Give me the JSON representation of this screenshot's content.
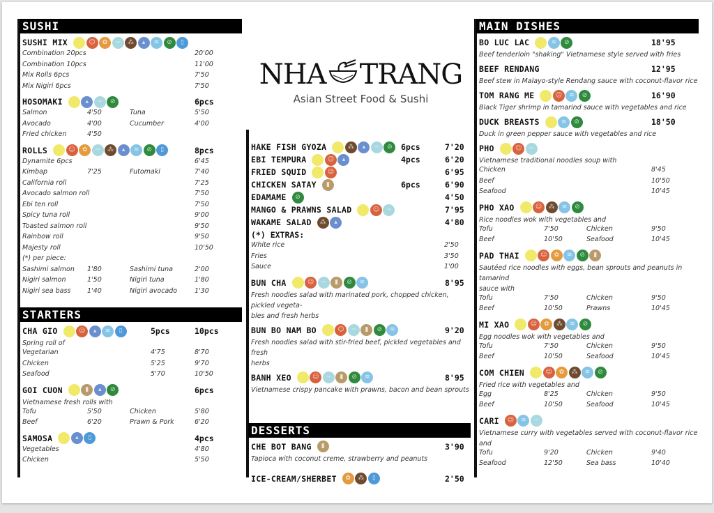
{
  "logo": {
    "title_left": "NHA",
    "title_right": "TRANG",
    "subtitle": "Asian Street Food & Sushi"
  },
  "allergen_colors": {
    "yellow": "#f1e96a",
    "red": "#d8623e",
    "orange": "#e49a3e",
    "teal": "#a9d8e0",
    "brown": "#6e4a2f",
    "blue": "#6a8fcf",
    "sky": "#86c4e6",
    "green": "#2f8a3e",
    "bottle": "#4e9ad8",
    "tan": "#b99a6a"
  },
  "left": {
    "sushi": {
      "title": "SUSHI",
      "sushi_mix": {
        "name": "SUSHI MIX",
        "icons": [
          "yellow",
          "red",
          "orange",
          "teal",
          "brown",
          "blue",
          "sky",
          "green",
          "bottle"
        ],
        "rows": [
          [
            "Combination 20pcs",
            "20'00"
          ],
          [
            "Combination 10pcs",
            "11'00"
          ],
          [
            "Mix Rolls 6pcs",
            "7'50"
          ],
          [
            "Mix Nigiri 6pcs",
            "7'50"
          ]
        ]
      },
      "hosomaki": {
        "name": "HOSOMAKI",
        "pcs": "6pcs",
        "icons": [
          "yellow",
          "blue",
          "teal",
          "green"
        ],
        "rows": [
          [
            "Salmon",
            "4'50",
            "Tuna",
            "5'50"
          ],
          [
            "Avocado",
            "4'00",
            "Cucumber",
            "4'00"
          ],
          [
            "Fried chicken",
            "4'50",
            "",
            ""
          ]
        ]
      },
      "rolls": {
        "name": "ROLLS",
        "pcs": "8pcs",
        "icons": [
          "yellow",
          "red",
          "orange",
          "teal",
          "brown",
          "blue",
          "sky",
          "green",
          "bottle"
        ],
        "rows": [
          [
            "Dynamite 6pcs",
            "",
            "",
            "6'45"
          ],
          [
            "Kimbap",
            "7'25",
            "Futomaki",
            "7'40"
          ],
          [
            "California roll",
            "",
            "",
            "7'25"
          ],
          [
            "Avocado salmon roll",
            "",
            "",
            "7'50"
          ],
          [
            "Ebi ten roll",
            "",
            "",
            "7'50"
          ],
          [
            "Spicy tuna roll",
            "",
            "",
            "9'00"
          ],
          [
            "Toasted salmon roll",
            "",
            "",
            "9'50"
          ],
          [
            "Rainbow roll",
            "",
            "",
            "9'50"
          ],
          [
            "Majesty roll",
            "",
            "",
            "10'50"
          ],
          [
            "(*) per piece:",
            "",
            "",
            ""
          ],
          [
            "Sashimi salmon",
            "1'80",
            "Sashimi tuna",
            "2'00"
          ],
          [
            "Nigiri salmon",
            "1'50",
            "Nigiri tuna",
            "1'80"
          ],
          [
            "Nigiri sea bass",
            "1'40",
            "Nigiri avocado",
            "1'30"
          ]
        ]
      }
    },
    "starters": {
      "title": "STARTERS",
      "cha_gio": {
        "name": "CHA GIO",
        "pcs5": "5pcs",
        "pcs10": "10pcs",
        "icons": [
          "yellow",
          "red",
          "blue",
          "sky",
          "bottle"
        ],
        "desc": "Spring roll of",
        "rows": [
          [
            "Vegetarian",
            "4'75",
            "8'70"
          ],
          [
            "Chicken",
            "5'25",
            "9'70"
          ],
          [
            "Seafood",
            "5'70",
            "10'50"
          ]
        ]
      },
      "goi_cuon": {
        "name": "GOI CUON",
        "pcs": "6pcs",
        "icons": [
          "yellow",
          "tan",
          "blue",
          "green"
        ],
        "desc": "Vietnamese fresh rolls with",
        "rows": [
          [
            "Tofu",
            "5'50",
            "Chicken",
            "5'80"
          ],
          [
            "Beef",
            "6'20",
            "Prawn & Pork",
            "6'20"
          ]
        ]
      },
      "samosa": {
        "name": "SAMOSA",
        "pcs": "4pcs",
        "icons": [
          "yellow",
          "blue",
          "bottle"
        ],
        "rows": [
          [
            "Vegetables",
            "4'80"
          ],
          [
            "Chicken",
            "5'50"
          ]
        ]
      }
    }
  },
  "middle": {
    "starters_cont": [
      {
        "name": "HAKE FISH GYOZA",
        "icons": [
          "yellow",
          "brown",
          "blue",
          "teal",
          "green"
        ],
        "pcs": "6pcs",
        "price": "7'20"
      },
      {
        "name": "EBI TEMPURA",
        "icons": [
          "yellow",
          "red",
          "blue"
        ],
        "pcs": "4pcs",
        "price": "6'20"
      },
      {
        "name": "FRIED SQUID",
        "icons": [
          "yellow",
          "red"
        ],
        "pcs": "",
        "price": "6'95"
      },
      {
        "name": "CHICKEN SATAY",
        "icons": [
          "tan"
        ],
        "pcs": "6pcs",
        "price": "6'90"
      },
      {
        "name": "EDAMAME",
        "icons": [
          "green"
        ],
        "pcs": "",
        "price": "4'50"
      },
      {
        "name": "MANGO & PRAWNS SALAD",
        "icons": [
          "yellow",
          "red",
          "teal"
        ],
        "pcs": "",
        "price": "7'95"
      },
      {
        "name": "WAKAME SALAD",
        "icons": [
          "brown",
          "blue"
        ],
        "pcs": "",
        "price": "4'80"
      }
    ],
    "extras": {
      "title": "(*) EXTRAS:",
      "rows": [
        [
          "White rice",
          "2'50"
        ],
        [
          "Fries",
          "3'50"
        ],
        [
          "Sauce",
          "1'00"
        ]
      ]
    },
    "salads": [
      {
        "name": "BUN CHA",
        "icons": [
          "yellow",
          "red",
          "teal",
          "tan",
          "green",
          "sky"
        ],
        "price": "8'95",
        "desc": [
          "Fresh noodles salad with marinated pork, chopped chicken, pickled vegeta-",
          "bles and fresh herbs"
        ]
      },
      {
        "name": "BUN BO NAM BO",
        "icons": [
          "yellow",
          "red",
          "teal",
          "tan",
          "green",
          "sky"
        ],
        "price": "9'20",
        "desc": [
          "Fresh noodles salad with stir-fried beef, pickled vegetables and fresh",
          "herbs"
        ]
      },
      {
        "name": "BANH XEO",
        "icons": [
          "yellow",
          "red",
          "teal",
          "tan",
          "green",
          "sky"
        ],
        "price": "8'95",
        "desc": [
          "Vietnamese crispy pancake with prawns, bacon and bean sprouts"
        ]
      }
    ],
    "desserts": {
      "title": "DESSERTS",
      "items": [
        {
          "name": "CHE BOT BANG",
          "icons": [
            "tan"
          ],
          "price": "3'90",
          "desc": "Tapioca with coconut creme, strawberry and peanuts"
        },
        {
          "name": "ICE-CREAM/SHERBET",
          "icons": [
            "orange",
            "brown",
            "bottle"
          ],
          "price": "2'50",
          "desc": ""
        }
      ]
    }
  },
  "right": {
    "title": "MAIN DISHES",
    "simple": [
      {
        "name": "BO LUC LAC",
        "icons": [
          "yellow",
          "sky",
          "green"
        ],
        "price": "18'95",
        "desc": "Beef tenderloin \"shaking\" Vietnamese style served with fries"
      },
      {
        "name": "BEEF RENDANG",
        "icons": [],
        "price": "12'95",
        "desc": "Beef stew in Malayo-style Rendang sauce with coconut-flavor rice"
      },
      {
        "name": "TOM RANG ME",
        "icons": [
          "yellow",
          "red",
          "sky",
          "green"
        ],
        "price": "16'90",
        "desc": "Black Tiger shrimp in tamarind sauce with vegetables and rice"
      },
      {
        "name": "DUCK BREASTS",
        "icons": [
          "yellow",
          "sky",
          "green"
        ],
        "price": "18'50",
        "desc": "Duck in green pepper sauce with vegetables and rice"
      }
    ],
    "pho": {
      "name": "PHO",
      "icons": [
        "yellow",
        "red",
        "teal"
      ],
      "desc": "Vietnamese traditional noodles soup with",
      "rows": [
        [
          "Chicken",
          "8'45"
        ],
        [
          "Beef",
          "10'50"
        ],
        [
          "Seafood",
          "10'45"
        ]
      ]
    },
    "pho_xao": {
      "name": "PHO XAO",
      "icons": [
        "yellow",
        "red",
        "brown",
        "sky",
        "green"
      ],
      "desc": "Rice noodles wok with vegetables and",
      "rows": [
        [
          "Tofu",
          "7'50",
          "Chicken",
          "9'50"
        ],
        [
          "Beef",
          "10'50",
          "Seafood",
          "10'45"
        ]
      ]
    },
    "pad_thai": {
      "name": "PAD THAI",
      "icons": [
        "yellow",
        "red",
        "orange",
        "sky",
        "green",
        "tan"
      ],
      "desc": [
        "Sautéed rice noodles with eggs, bean sprouts and peanuts in tamarind",
        "sauce with"
      ],
      "rows": [
        [
          "Tofu",
          "7'50",
          "Chicken",
          "9'50"
        ],
        [
          "Beef",
          "10'50",
          "Prawns",
          "10'45"
        ]
      ]
    },
    "mi_xao": {
      "name": "MI XAO",
      "icons": [
        "yellow",
        "red",
        "orange",
        "brown",
        "sky",
        "green"
      ],
      "desc": "Egg noodles wok with vegetables and",
      "rows": [
        [
          "Tofu",
          "7'50",
          "Chicken",
          "9'50"
        ],
        [
          "Beef",
          "10'50",
          "Seafood",
          "10'45"
        ]
      ]
    },
    "com_chien": {
      "name": "COM CHIEN",
      "icons": [
        "yellow",
        "red",
        "orange",
        "brown",
        "sky",
        "green"
      ],
      "desc": "Fried rice with vegetables and",
      "rows": [
        [
          "Egg",
          "8'25",
          "Chicken",
          "9'50"
        ],
        [
          "Beef",
          "10'50",
          "Seafood",
          "10'45"
        ]
      ]
    },
    "cari": {
      "name": "CARI",
      "icons": [
        "red",
        "sky",
        "teal"
      ],
      "desc": "Vietnamese curry with vegetables served with coconut-flavor rice and",
      "rows": [
        [
          "Tofu",
          "9'20",
          "Chicken",
          "9'40"
        ],
        [
          "Seafood",
          "12'50",
          "Sea bass",
          "10'40"
        ]
      ]
    }
  }
}
